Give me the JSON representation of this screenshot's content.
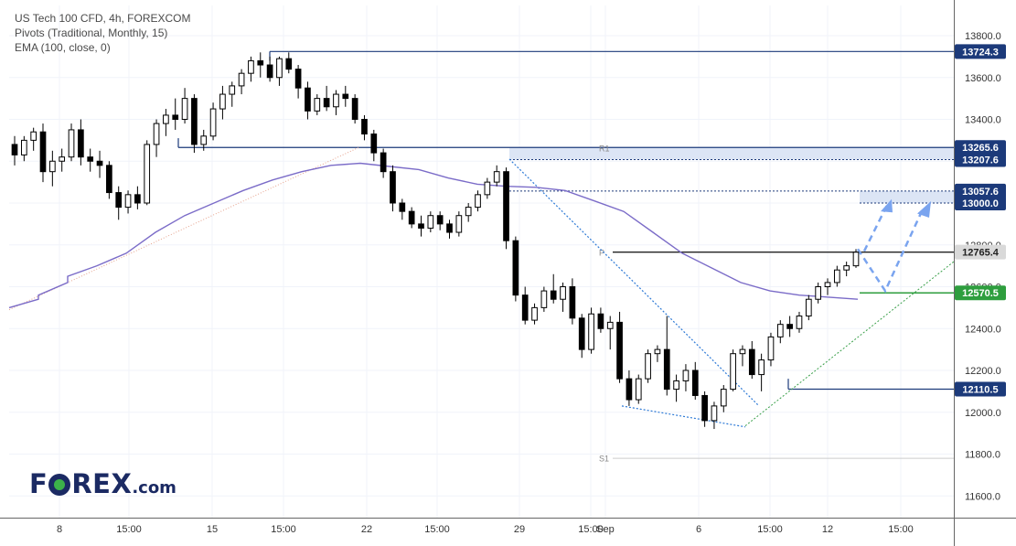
{
  "legend": {
    "line1": "US Tech 100 CFD, 4h, FOREXCOM",
    "line2": "Pivots (Traditional, Monthly, 15)",
    "line3": "EMA (100, close, 0)"
  },
  "logo": {
    "f": "F",
    "rex": "REX",
    "dotcom": ".com"
  },
  "chart_data": {
    "type": "candlestick",
    "title": "US Tech 100 CFD, 4h, FOREXCOM",
    "ylim": [
      11500,
      13900
    ],
    "y_ticks": [
      "13800.0",
      "13600.0",
      "13400.0",
      "13200.0",
      "13000.0",
      "12800.0",
      "12600.0",
      "12400.0",
      "12200.0",
      "12000.0",
      "11800.0",
      "11600.0"
    ],
    "x_ticks": [
      "8",
      "15:00",
      "15",
      "15:00",
      "22",
      "15:00",
      "29",
      "15:00",
      "Sep",
      "6",
      "15:00",
      "12",
      "15:00"
    ],
    "candles": [
      [
        13280,
        13320,
        13180,
        13230
      ],
      [
        13230,
        13320,
        13200,
        13300
      ],
      [
        13300,
        13360,
        13250,
        13340
      ],
      [
        13340,
        13380,
        13100,
        13150
      ],
      [
        13150,
        13250,
        13080,
        13200
      ],
      [
        13200,
        13260,
        13150,
        13220
      ],
      [
        13220,
        13380,
        13200,
        13350
      ],
      [
        13350,
        13400,
        13180,
        13220
      ],
      [
        13220,
        13260,
        13150,
        13200
      ],
      [
        13200,
        13250,
        13120,
        13180
      ],
      [
        13180,
        13200,
        13020,
        13050
      ],
      [
        13050,
        13080,
        12920,
        12980
      ],
      [
        12980,
        13060,
        12950,
        13040
      ],
      [
        13040,
        13080,
        12970,
        13000
      ],
      [
        13000,
        13300,
        12990,
        13280
      ],
      [
        13280,
        13400,
        13220,
        13380
      ],
      [
        13380,
        13450,
        13320,
        13420
      ],
      [
        13420,
        13500,
        13350,
        13400
      ],
      [
        13400,
        13550,
        13380,
        13500
      ],
      [
        13500,
        13520,
        13240,
        13280
      ],
      [
        13280,
        13350,
        13250,
        13320
      ],
      [
        13320,
        13480,
        13300,
        13450
      ],
      [
        13450,
        13560,
        13400,
        13520
      ],
      [
        13520,
        13580,
        13460,
        13560
      ],
      [
        13560,
        13640,
        13520,
        13620
      ],
      [
        13620,
        13700,
        13580,
        13680
      ],
      [
        13680,
        13720,
        13600,
        13660
      ],
      [
        13660,
        13700,
        13580,
        13600
      ],
      [
        13600,
        13700,
        13560,
        13690
      ],
      [
        13690,
        13720,
        13620,
        13640
      ],
      [
        13640,
        13660,
        13500,
        13550
      ],
      [
        13550,
        13580,
        13400,
        13440
      ],
      [
        13440,
        13520,
        13420,
        13500
      ],
      [
        13500,
        13560,
        13440,
        13460
      ],
      [
        13460,
        13540,
        13420,
        13520
      ],
      [
        13520,
        13560,
        13460,
        13500
      ],
      [
        13500,
        13520,
        13380,
        13400
      ],
      [
        13400,
        13420,
        13300,
        13330
      ],
      [
        13330,
        13350,
        13200,
        13240
      ],
      [
        13240,
        13260,
        13120,
        13150
      ],
      [
        13150,
        13180,
        12960,
        13000
      ],
      [
        13000,
        13020,
        12920,
        12960
      ],
      [
        12960,
        12980,
        12880,
        12900
      ],
      [
        12900,
        12940,
        12840,
        12880
      ],
      [
        12880,
        12960,
        12860,
        12940
      ],
      [
        12940,
        12960,
        12870,
        12900
      ],
      [
        12900,
        12920,
        12830,
        12860
      ],
      [
        12860,
        12960,
        12840,
        12940
      ],
      [
        12940,
        13000,
        12910,
        12980
      ],
      [
        12980,
        13060,
        12960,
        13040
      ],
      [
        13040,
        13120,
        13020,
        13100
      ],
      [
        13100,
        13180,
        13080,
        13150
      ],
      [
        13150,
        13170,
        12780,
        12820
      ],
      [
        12820,
        12840,
        12530,
        12560
      ],
      [
        12560,
        12600,
        12420,
        12440
      ],
      [
        12440,
        12520,
        12420,
        12500
      ],
      [
        12500,
        12600,
        12480,
        12580
      ],
      [
        12580,
        12660,
        12520,
        12540
      ],
      [
        12540,
        12620,
        12480,
        12600
      ],
      [
        12600,
        12640,
        12420,
        12450
      ],
      [
        12450,
        12470,
        12260,
        12300
      ],
      [
        12300,
        12500,
        12280,
        12470
      ],
      [
        12470,
        12500,
        12380,
        12400
      ],
      [
        12400,
        12460,
        12300,
        12430
      ],
      [
        12430,
        12480,
        12140,
        12160
      ],
      [
        12160,
        12200,
        12030,
        12060
      ],
      [
        12060,
        12180,
        12040,
        12160
      ],
      [
        12160,
        12300,
        12140,
        12280
      ],
      [
        12280,
        12320,
        12240,
        12300
      ],
      [
        12300,
        12460,
        12080,
        12110
      ],
      [
        12110,
        12180,
        12050,
        12150
      ],
      [
        12150,
        12230,
        12100,
        12200
      ],
      [
        12200,
        12240,
        12060,
        12080
      ],
      [
        12080,
        12100,
        11930,
        11960
      ],
      [
        11960,
        12050,
        11920,
        12030
      ],
      [
        12030,
        12130,
        12000,
        12110
      ],
      [
        12110,
        12300,
        12100,
        12280
      ],
      [
        12280,
        12320,
        12220,
        12300
      ],
      [
        12300,
        12340,
        12160,
        12180
      ],
      [
        12180,
        12280,
        12100,
        12250
      ],
      [
        12250,
        12380,
        12220,
        12360
      ],
      [
        12360,
        12440,
        12330,
        12420
      ],
      [
        12420,
        12460,
        12360,
        12400
      ],
      [
        12400,
        12480,
        12380,
        12460
      ],
      [
        12460,
        12560,
        12440,
        12540
      ],
      [
        12540,
        12620,
        12520,
        12600
      ],
      [
        12600,
        12640,
        12560,
        12620
      ],
      [
        12620,
        12700,
        12600,
        12680
      ],
      [
        12680,
        12720,
        12650,
        12700
      ],
      [
        12700,
        12780,
        12690,
        12765
      ]
    ],
    "ema_100": [
      [
        12500,
        12540
      ],
      [
        12560,
        12620
      ],
      [
        12650,
        12700
      ],
      [
        12700,
        12760
      ],
      [
        12760,
        12860
      ],
      [
        12860,
        12940
      ],
      [
        12940,
        13000
      ],
      [
        13000,
        13060
      ],
      [
        13060,
        13110
      ],
      [
        13110,
        13150
      ],
      [
        13150,
        13180
      ],
      [
        13180,
        13190
      ],
      [
        13190,
        13175
      ],
      [
        13175,
        13160
      ],
      [
        13160,
        13120
      ],
      [
        13120,
        13090
      ],
      [
        13090,
        13080
      ],
      [
        13080,
        13075
      ],
      [
        13075,
        13060
      ],
      [
        13060,
        13010
      ],
      [
        13010,
        12960
      ],
      [
        12960,
        12860
      ],
      [
        12860,
        12760
      ],
      [
        12760,
        12690
      ],
      [
        12690,
        12620
      ],
      [
        12620,
        12580
      ],
      [
        12580,
        12560
      ],
      [
        12560,
        12550
      ],
      [
        12550,
        12540
      ]
    ],
    "price_labels": [
      {
        "value": 13724.3,
        "text": "13724.3",
        "color": "#1c3a7a"
      },
      {
        "value": 13265.6,
        "text": "13265.6",
        "color": "#1c3a7a"
      },
      {
        "value": 13207.6,
        "text": "13207.6",
        "color": "#1c3a7a"
      },
      {
        "value": 13057.6,
        "text": "13057.6",
        "color": "#1c3a7a"
      },
      {
        "value": 13000.0,
        "text": "13000.0",
        "color": "#1c3a7a"
      },
      {
        "value": 12765.4,
        "text": "12765.4",
        "color": "#d9d9d9",
        "text_color": "#222222"
      },
      {
        "value": 12570.5,
        "text": "12570.5",
        "color": "#2e9e3e"
      },
      {
        "value": 12110.5,
        "text": "12110.5",
        "color": "#1c3a7a"
      }
    ],
    "pivot_labels": {
      "r1": "R1",
      "p": "P",
      "s1": "S1"
    },
    "colors": {
      "candle": "#000000",
      "ema": "#7b6cc8",
      "resistance": "#1c3a7a",
      "support": "#2e9e3e",
      "trend": "#2e7ad6",
      "projection": "#7aa4ef",
      "zone": "#dce5f5"
    }
  }
}
